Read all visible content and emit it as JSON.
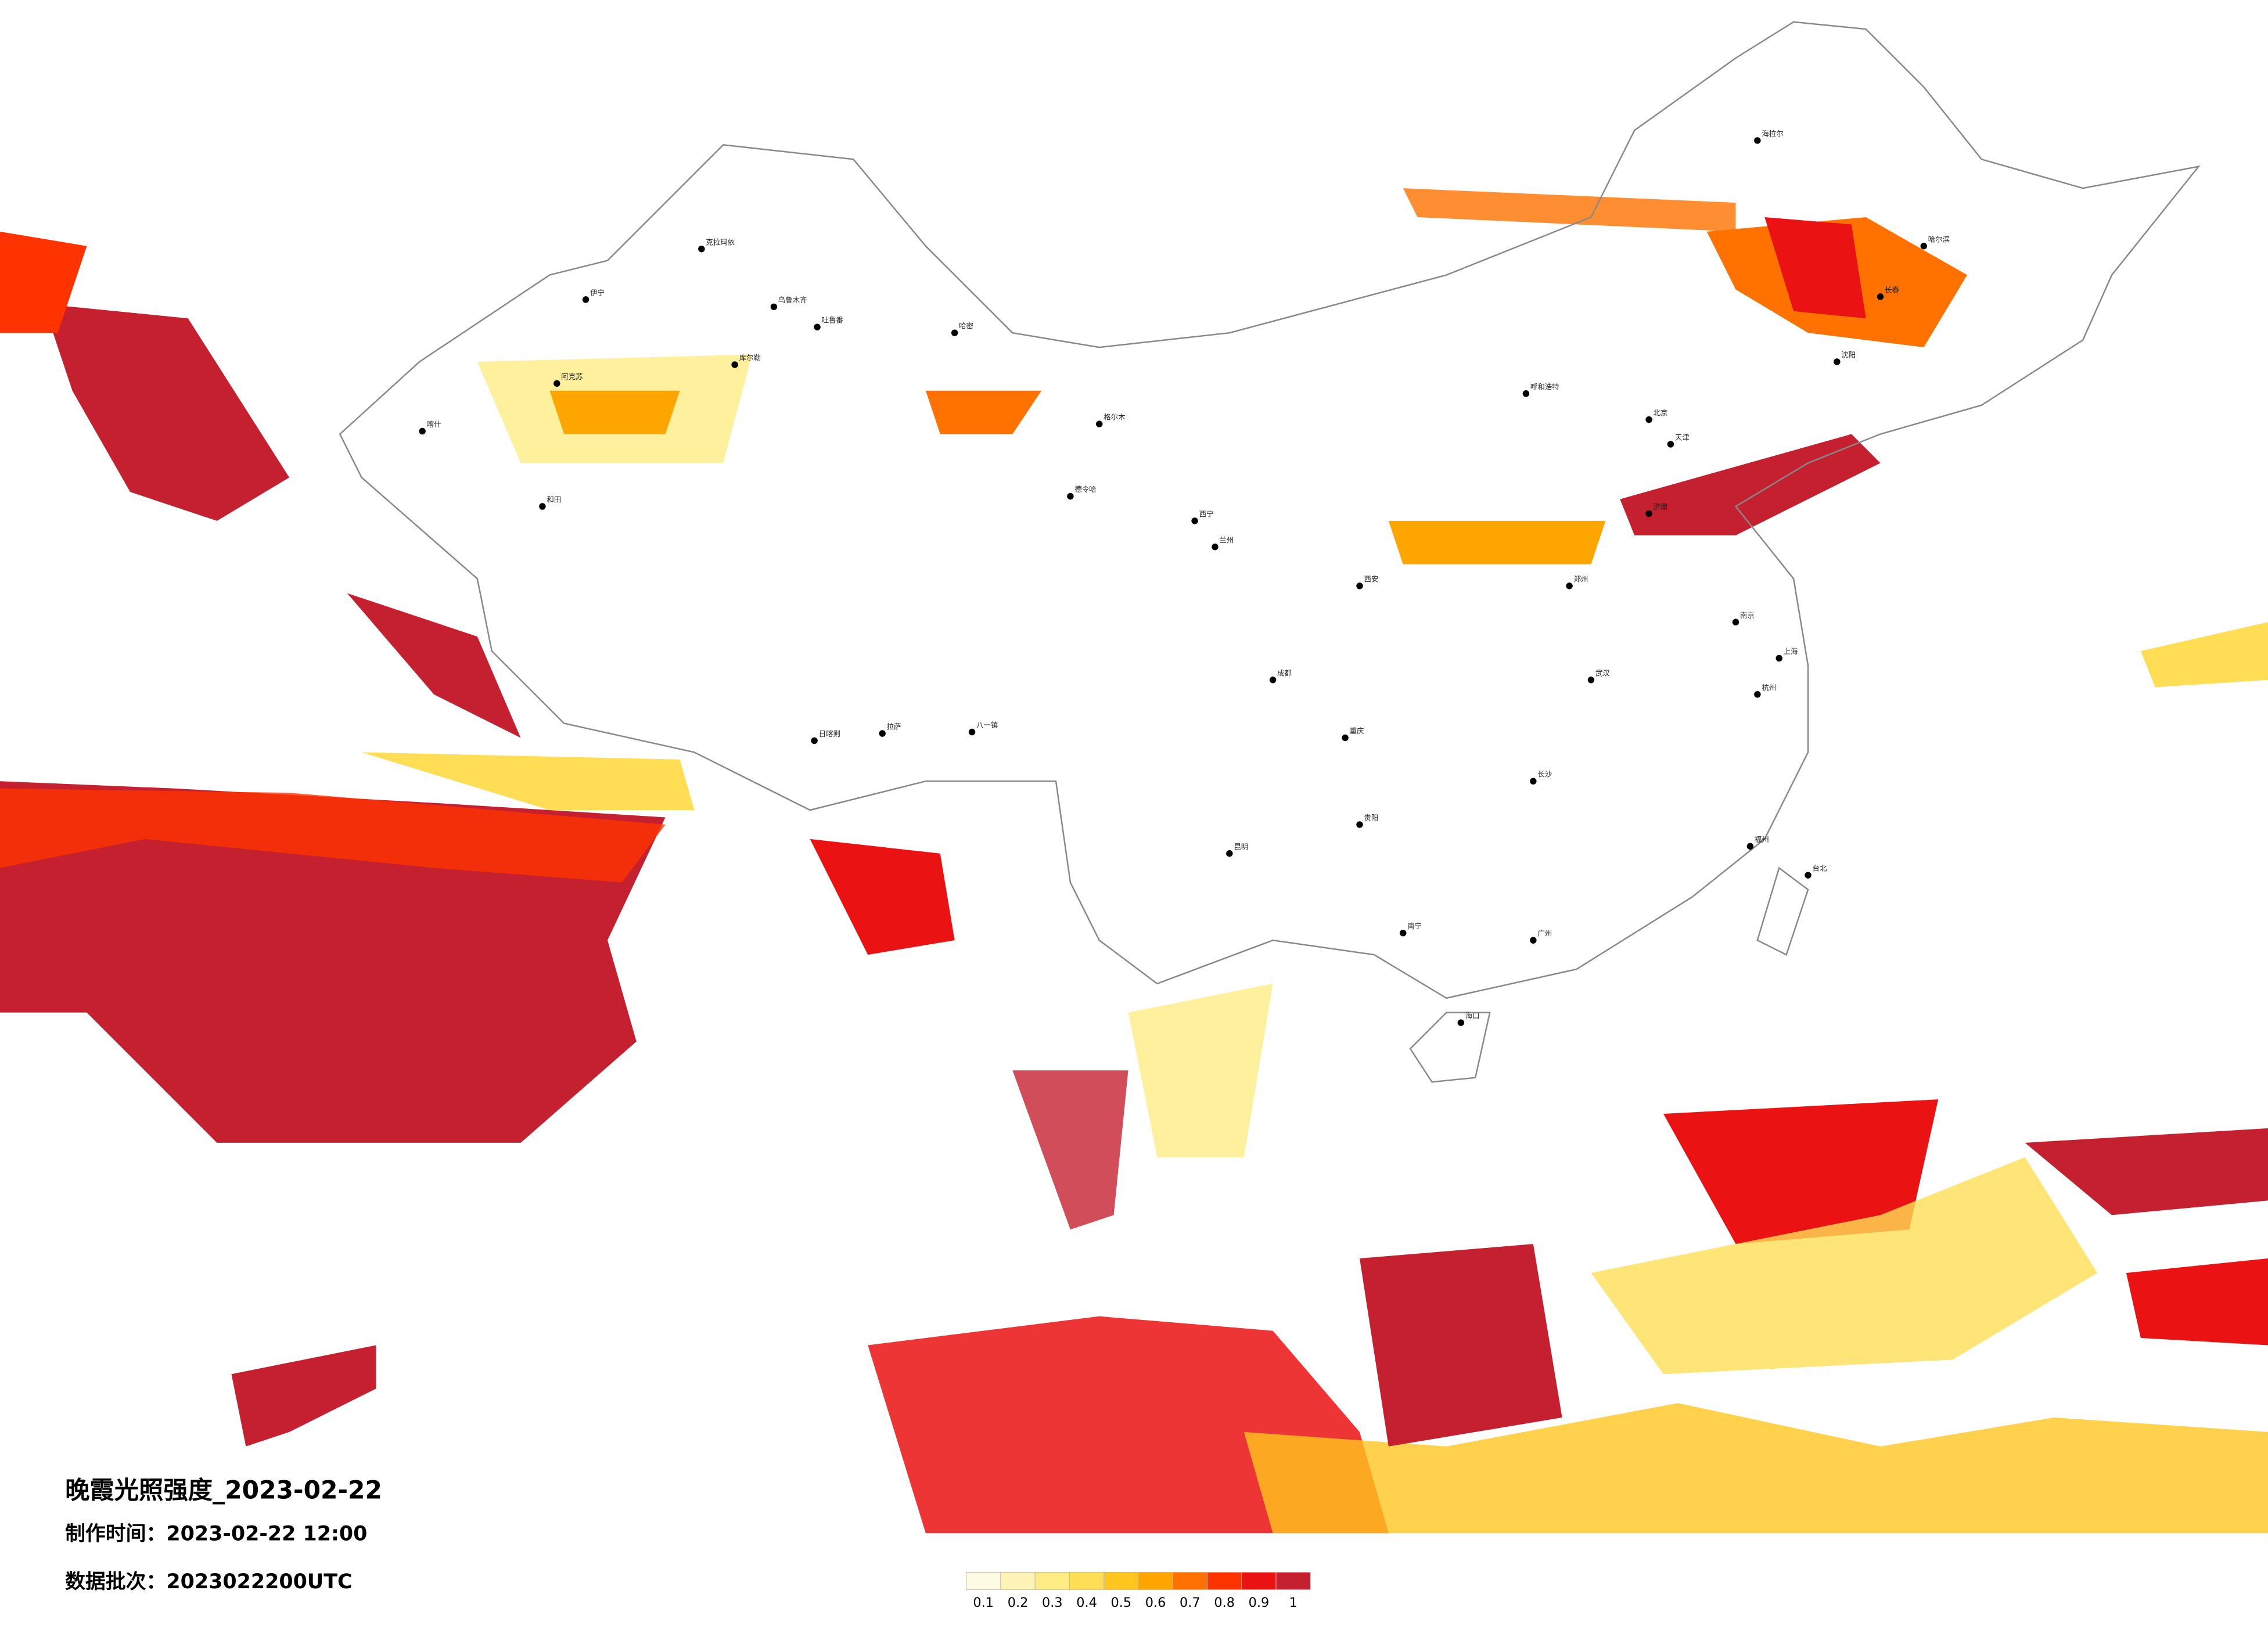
{
  "title": "晚霞光照强度_2023-02-22",
  "made_time": "制作时间：2023-02-22 12:00",
  "batch": "数据批次：2023022200UTC",
  "legend": {
    "colors": [
      "#fffbe3",
      "#fff4b8",
      "#ffec85",
      "#ffdd55",
      "#ffc61f",
      "#ffa500",
      "#ff7200",
      "#ff3300",
      "#ea1212",
      "#c42030"
    ],
    "labels": [
      0.1,
      0.2,
      0.3,
      0.4,
      0.5,
      0.6,
      0.7,
      0.8,
      0.9,
      1
    ]
  },
  "cities": [
    "克拉玛依",
    "伊宁",
    "乌鲁木齐",
    "吐鲁番",
    "哈密",
    "阿克苏",
    "喀什",
    "和田",
    "库尔勒",
    "格尔木",
    "德令哈",
    "日喀则",
    "拉萨",
    "八一镇",
    "西宁",
    "兰州",
    "呼和浩特",
    "北京",
    "天津",
    "济南",
    "郑州",
    "西安",
    "成都",
    "重庆",
    "昆明",
    "贵阳",
    "南宁",
    "广州",
    "长沙",
    "武汉",
    "南京",
    "上海",
    "杭州",
    "福州",
    "台北",
    "海口",
    "哈尔滨",
    "长春",
    "沈阳",
    "海拉尔"
  ]
}
